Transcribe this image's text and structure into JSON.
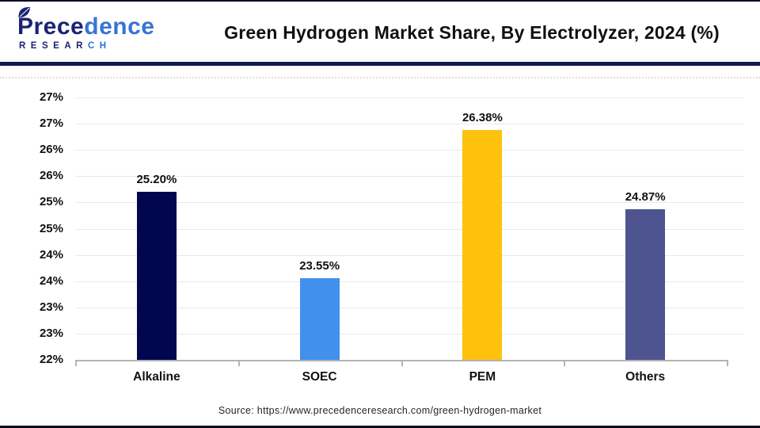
{
  "header": {
    "logo": {
      "name_part1": "Prece",
      "name_part2": "dence",
      "sub_part1": "RESEAR",
      "sub_part2": "CH",
      "color_dark": "#1a2472",
      "color_light": "#3873d6"
    },
    "title": "Green Hydrogen Market Share, By Electrolyzer, 2024 (%)"
  },
  "chart_data": {
    "type": "bar",
    "title": "Green Hydrogen Market Share, By Electrolyzer, 2024 (%)",
    "categories": [
      "Alkaline",
      "SOEC",
      "PEM",
      "Others"
    ],
    "values": [
      25.2,
      23.55,
      26.38,
      24.87
    ],
    "value_labels": [
      "25.20%",
      "23.55%",
      "26.38%",
      "24.87%"
    ],
    "bar_colors": [
      "#010650",
      "#4190EE",
      "#FEC10D",
      "#4D5490"
    ],
    "xlabel": "",
    "ylabel": "",
    "ylim": [
      22,
      27
    ],
    "grid": true,
    "legend": false,
    "y_ticks": [
      {
        "value": 27.0,
        "label": "27%"
      },
      {
        "value": 26.5,
        "label": "27%"
      },
      {
        "value": 26.0,
        "label": "26%"
      },
      {
        "value": 25.5,
        "label": "26%"
      },
      {
        "value": 25.0,
        "label": "25%"
      },
      {
        "value": 24.5,
        "label": "25%"
      },
      {
        "value": 24.0,
        "label": "24%"
      },
      {
        "value": 23.5,
        "label": "24%"
      },
      {
        "value": 23.0,
        "label": "23%"
      },
      {
        "value": 22.5,
        "label": "23%"
      },
      {
        "value": 22.0,
        "label": "22%"
      }
    ]
  },
  "footer": {
    "source": "Source: https://www.precedenceresearch.com/green-hydrogen-market"
  }
}
